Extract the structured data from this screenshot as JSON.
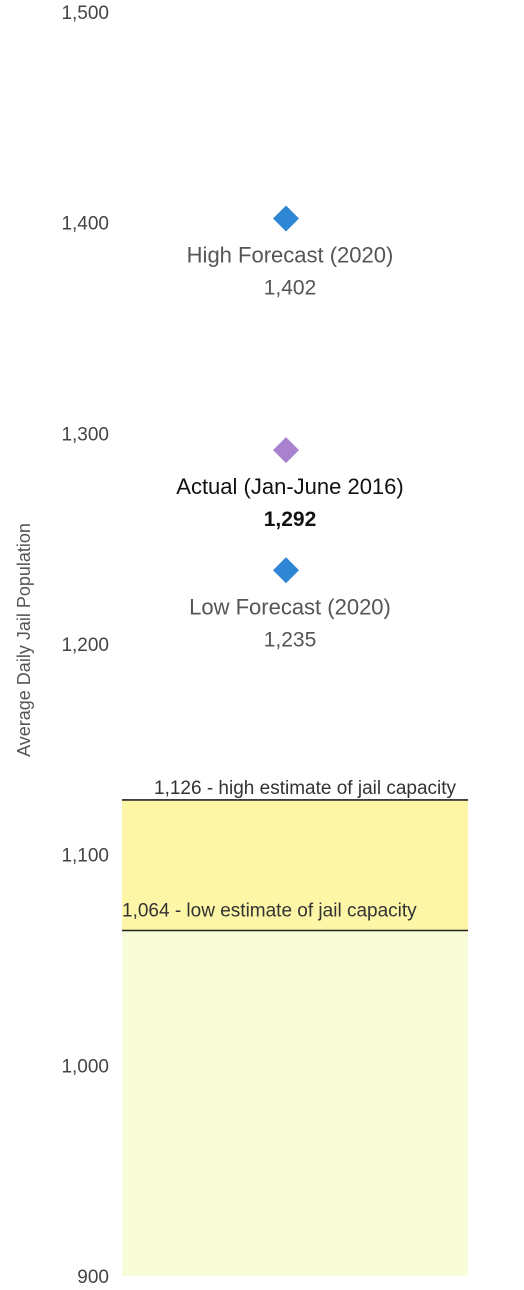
{
  "chart_data": {
    "type": "scatter",
    "ylabel": "Average Daily Jail Population",
    "ylim": [
      900,
      1500
    ],
    "yticks": [
      "1,500",
      "1,400",
      "1,300",
      "1,200",
      "1,100",
      "1,000",
      "900"
    ],
    "points": [
      {
        "label": "High Forecast (2020)",
        "value": 1402,
        "value_text": "1,402",
        "color": "#2f86d4"
      },
      {
        "label": "Actual (Jan-June 2016)",
        "value": 1292,
        "value_text": "1,292",
        "color": "#a882cf"
      },
      {
        "label": "Low Forecast (2020)",
        "value": 1235,
        "value_text": "1,235",
        "color": "#2f86d4"
      }
    ],
    "capacity_lines": [
      {
        "value": 1126,
        "label": "1,126 - high estimate of jail capacity"
      },
      {
        "value": 1064,
        "label": "1,064 - low estimate of jail capacity"
      }
    ],
    "band_colors": {
      "between_estimates": "#fcf6a6",
      "below_low_estimate": "#f9fcd8"
    },
    "line_color": "#222222"
  }
}
